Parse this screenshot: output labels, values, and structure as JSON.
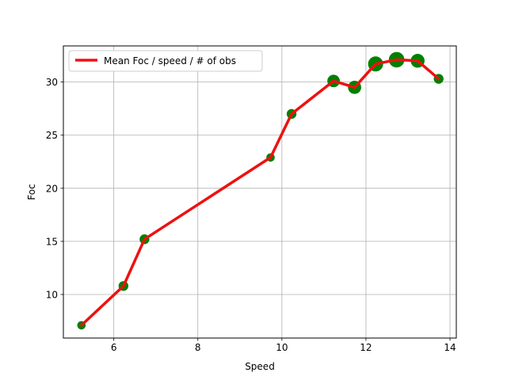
{
  "chart_data": {
    "type": "line",
    "title": "",
    "xlabel": "Speed",
    "ylabel": "Foc",
    "xlim": [
      4.8,
      14.15
    ],
    "ylim": [
      5.9,
      33.4
    ],
    "xticks": [
      6,
      8,
      10,
      12,
      14
    ],
    "yticks": [
      10,
      15,
      20,
      25,
      30
    ],
    "grid": true,
    "legend": {
      "position": "top-left",
      "entries": [
        "Mean Foc / speed / # of obs"
      ]
    },
    "series": [
      {
        "name": "Mean Foc / speed / # of obs",
        "line_color": "#ee1111",
        "marker_color": "#008000",
        "x": [
          5.23,
          6.23,
          6.73,
          9.73,
          10.23,
          11.23,
          11.73,
          12.23,
          12.73,
          13.23,
          13.73
        ],
        "y": [
          7.1,
          10.8,
          15.2,
          22.9,
          27.0,
          30.1,
          29.5,
          31.7,
          32.1,
          32.0,
          30.3
        ],
        "obs": [
          1,
          2,
          2,
          1,
          2,
          5,
          6,
          9,
          10,
          7,
          2
        ]
      }
    ]
  }
}
